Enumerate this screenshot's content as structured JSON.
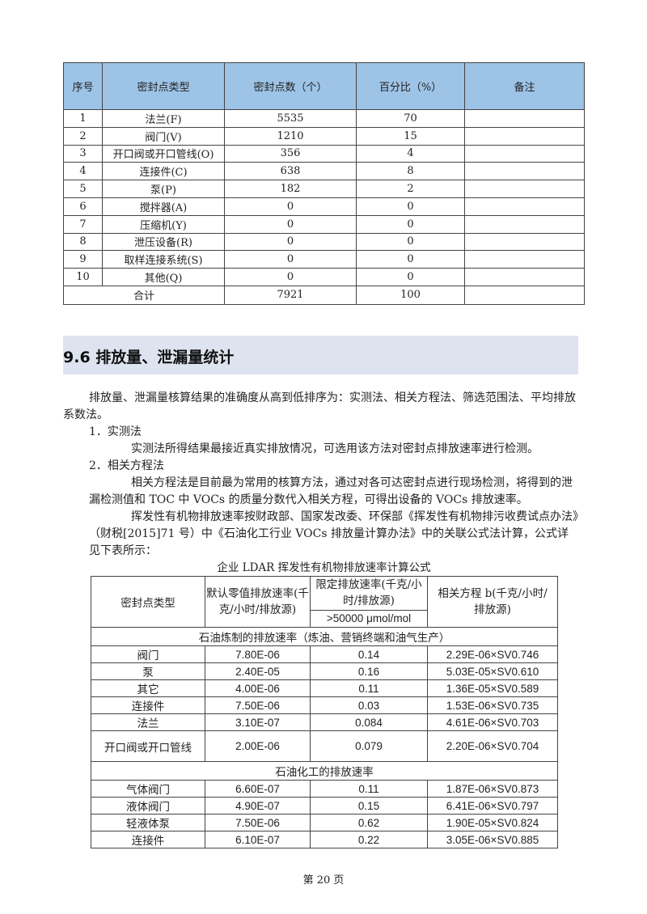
{
  "table1": {
    "headers": [
      "序号",
      "密封点类型",
      "密封点数（个）",
      "百分比（%）",
      "备注"
    ],
    "rows": [
      [
        "1",
        "法兰(F)",
        "5535",
        "70",
        ""
      ],
      [
        "2",
        "阀门(V)",
        "1210",
        "15",
        ""
      ],
      [
        "3",
        "开口阀或开口管线(O)",
        "356",
        "4",
        ""
      ],
      [
        "4",
        "连接件(C)",
        "638",
        "8",
        ""
      ],
      [
        "5",
        "泵(P)",
        "182",
        "2",
        ""
      ],
      [
        "6",
        "搅拌器(A)",
        "0",
        "0",
        ""
      ],
      [
        "7",
        "压缩机(Y)",
        "0",
        "0",
        ""
      ],
      [
        "8",
        "泄压设备(R)",
        "0",
        "0",
        ""
      ],
      [
        "9",
        "取样连接系统(S)",
        "0",
        "0",
        ""
      ],
      [
        "10",
        "其他(Q)",
        "0",
        "0",
        ""
      ]
    ],
    "total": {
      "label": "合计",
      "count": "7921",
      "percent": "100",
      "note": ""
    }
  },
  "section": {
    "title": "9.6 排放量、泄漏量统计"
  },
  "paragraphs": [
    "排放量、泄漏量核算结果的准确度从高到低排序为：实测法、相关方程法、筛选范围法、平均排放",
    "系数法。",
    "1．实测法",
    "实测法所得结果最接近真实排放情况，可选用该方法对密封点排放速率进行检测。",
    "2．相关方程法",
    "相关方程法是目前最为常用的核算方法，通过对各可达密封点进行现场检测，将得到的泄",
    "漏检测值和 TOC 中 VOCs 的质量分数代入相关方程，可得出设备的 VOCs 排放速率。",
    "挥发性有机物排放速率按财政部、国家发改委、环保部《挥发性有机物排污收费试点办法》",
    "（财税[2015]71 号）中《石油化工行业 VOCs 排放量计算办法》中的关联公式法计算，公式详",
    "见下表所示："
  ],
  "table2": {
    "caption": "企业 LDAR 挥发性有机物排放速率计算公式",
    "headers": {
      "type": "密封点类型",
      "default_rate": "默认零值排放速率(千克/小时/排放源)",
      "limit_rate": "限定排放速率(千克/小时/排放源)",
      "limit_sub": ">50000 μmol/mol",
      "equation": "相关方程 b(千克/小时/排放源)"
    },
    "group1": {
      "title": "石油炼制的排放速率（炼油、营销终端和油气生产）",
      "rows": [
        [
          "阀门",
          "7.80E-06",
          "0.14",
          "2.29E-06×SV0.746"
        ],
        [
          "泵",
          "2.40E-05",
          "0.16",
          "5.03E-05×SV0.610"
        ],
        [
          "其它",
          "4.00E-06",
          "0.11",
          "1.36E-05×SV0.589"
        ],
        [
          "连接件",
          "7.50E-06",
          "0.03",
          "1.53E-06×SV0.735"
        ],
        [
          "法兰",
          "3.10E-07",
          "0.084",
          "4.61E-06×SV0.703"
        ],
        [
          "开口阀或开口管线",
          "2.00E-06",
          "0.079",
          "2.20E-06×SV0.704"
        ]
      ]
    },
    "group2": {
      "title": "石油化工的排放速率",
      "rows": [
        [
          "气体阀门",
          "6.60E-07",
          "0.11",
          "1.87E-06×SV0.873"
        ],
        [
          "液体阀门",
          "4.90E-07",
          "0.15",
          "6.41E-06×SV0.797"
        ],
        [
          "轻液体泵",
          "7.50E-06",
          "0.62",
          "1.90E-05×SV0.824"
        ],
        [
          "连接件",
          "6.10E-07",
          "0.22",
          "3.05E-06×SV0.885"
        ]
      ]
    }
  },
  "footer": {
    "page": "第 20 页"
  }
}
